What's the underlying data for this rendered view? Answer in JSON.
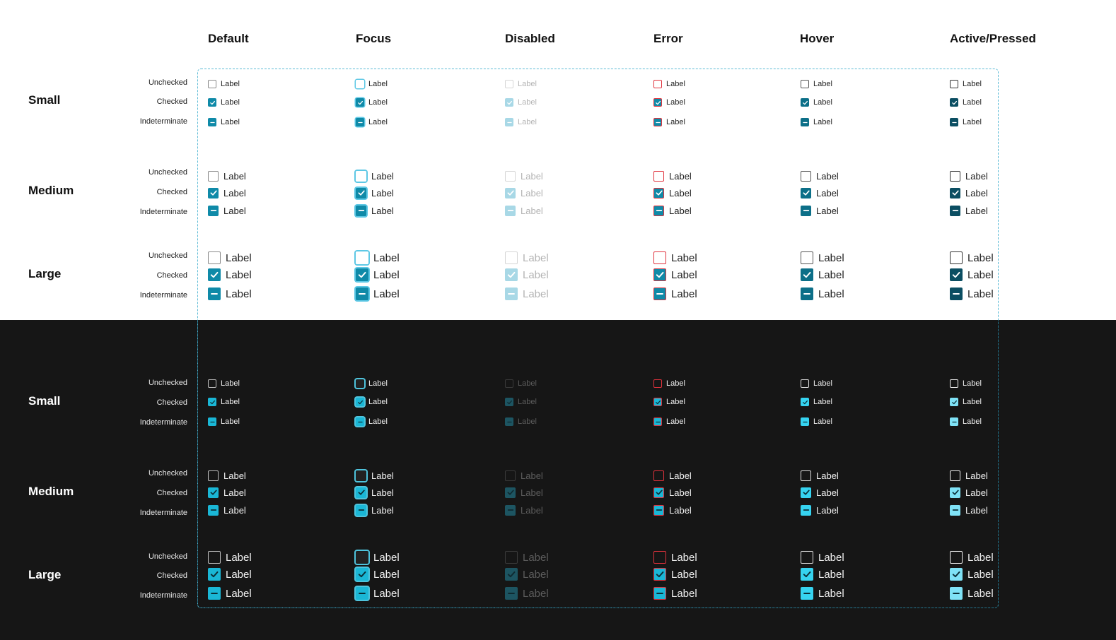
{
  "columns": [
    "Default",
    "Focus",
    "Disabled",
    "Error",
    "Hover",
    "Active/Pressed"
  ],
  "sizes": [
    "Small",
    "Medium",
    "Large"
  ],
  "states": [
    "Unchecked",
    "Checked",
    "Indeterminate"
  ],
  "checkbox_label": "Label",
  "icons": {
    "checked": "check-icon",
    "indeterminate": "dash-icon"
  },
  "colors": {
    "light": {
      "background": "#ffffff",
      "text": "#222222",
      "default_fill": "#0f8aa8",
      "default_border": "#8a8a8a",
      "focus_ring": "#5ec8e5",
      "disabled_fill": "#a8d8e6",
      "disabled_border": "#d6d6d6",
      "disabled_text": "#b4b4b4",
      "error": "#e0323c",
      "hover_fill": "#0c6f88",
      "hover_border": "#555555",
      "active_fill": "#0b4e62",
      "active_border": "#333333"
    },
    "dark": {
      "background": "#161616",
      "text": "#f0f0f0",
      "default_fill": "#1ab7d6",
      "default_border": "#bdbdbd",
      "focus_ring": "#4fc3dc",
      "disabled_fill": "#1d5562",
      "disabled_border": "#3a3a3a",
      "disabled_text": "#5c5c5c",
      "error": "#e0323c",
      "hover_fill": "#36d3f0",
      "hover_border": "#dddddd",
      "active_fill": "#7fe2f6",
      "active_border": "#f0f0f0"
    }
  }
}
